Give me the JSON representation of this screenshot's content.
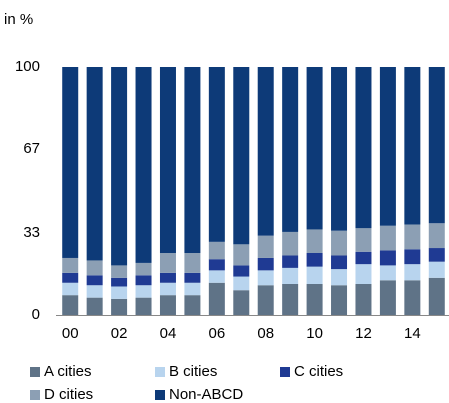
{
  "chart_data": {
    "type": "stacked_bar",
    "y_axis_label": "in %",
    "categories": [
      "00",
      null,
      "02",
      null,
      "04",
      null,
      "06",
      null,
      "08",
      null,
      "10",
      null,
      "12",
      null,
      "14",
      null
    ],
    "series": [
      {
        "name": "A cities",
        "color": "#5f7387",
        "values": [
          8,
          7,
          6.5,
          7,
          8,
          8,
          13,
          10,
          12,
          12.5,
          12.5,
          12,
          12.5,
          14,
          14,
          15
        ]
      },
      {
        "name": "B cities",
        "color": "#b8d4ee",
        "values": [
          5,
          5,
          5,
          5,
          5,
          5,
          5,
          5.5,
          6,
          6.5,
          7,
          6.5,
          8,
          6,
          6.5,
          6.5
        ]
      },
      {
        "name": "C cities",
        "color": "#1f3a93",
        "values": [
          4,
          4,
          3.5,
          4,
          4,
          4,
          4.5,
          4.5,
          5,
          5,
          5.5,
          5.5,
          5,
          6,
          6,
          5.5
        ]
      },
      {
        "name": "D cities",
        "color": "#8c9fb4",
        "values": [
          6,
          6,
          5,
          5,
          8,
          8,
          7,
          8.5,
          9,
          9.5,
          9.5,
          10,
          9.5,
          10,
          10,
          10
        ]
      },
      {
        "name": "Non-ABCD",
        "color": "#0d3a78",
        "values": [
          77,
          78,
          80,
          79,
          75,
          75,
          70.5,
          71.5,
          68,
          66.5,
          65.5,
          66,
          65,
          64,
          63.5,
          63
        ]
      }
    ],
    "ylim": [
      0,
      100
    ],
    "yticks": [
      0,
      33,
      67,
      100
    ],
    "grid": false
  }
}
